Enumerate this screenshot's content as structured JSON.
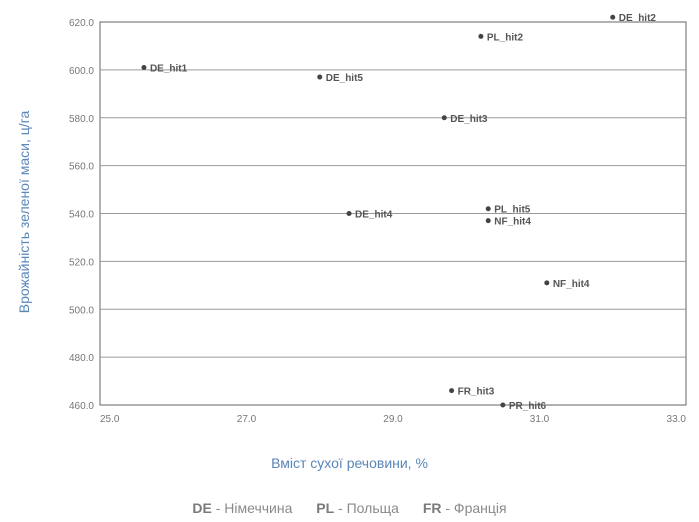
{
  "chart_data": {
    "type": "scatter",
    "xlabel": "Вміст сухої речовини, %",
    "ylabel": "Врожайність зеленої маси, ц/га",
    "xlim": [
      25.0,
      33.0
    ],
    "ylim": [
      460.0,
      620.0
    ],
    "x_ticks": [
      "25.0",
      "27.0",
      "29.0",
      "31.0",
      "33.0"
    ],
    "y_ticks": [
      "460.0",
      "480.0",
      "500.0",
      "520.0",
      "540.0",
      "560.0",
      "580.0",
      "600.0",
      "620.0"
    ],
    "grid": true,
    "points": [
      {
        "label": "DE_hit1",
        "x": 25.6,
        "y": 601
      },
      {
        "label": "DE_hit2",
        "x": 32.0,
        "y": 622
      },
      {
        "label": "PL_hit2",
        "x": 30.2,
        "y": 614
      },
      {
        "label": "DE_hit5",
        "x": 28.0,
        "y": 597
      },
      {
        "label": "DE_hit3",
        "x": 29.7,
        "y": 580
      },
      {
        "label": "DE_hit4",
        "x": 28.4,
        "y": 540
      },
      {
        "label": "PL_hit5",
        "x": 30.3,
        "y": 542
      },
      {
        "label": "NF_hit4",
        "x": 30.3,
        "y": 537
      },
      {
        "label": "NF_hit4",
        "x": 31.1,
        "y": 511
      },
      {
        "label": "FR_hit3",
        "x": 29.8,
        "y": 466
      },
      {
        "label": "PR_hit6",
        "x": 30.5,
        "y": 460
      }
    ]
  },
  "legend": [
    {
      "code": "DE",
      "name": " - Німеччина"
    },
    {
      "code": "PL",
      "name": " - Польща"
    },
    {
      "code": "FR",
      "name": " - Франція"
    }
  ]
}
